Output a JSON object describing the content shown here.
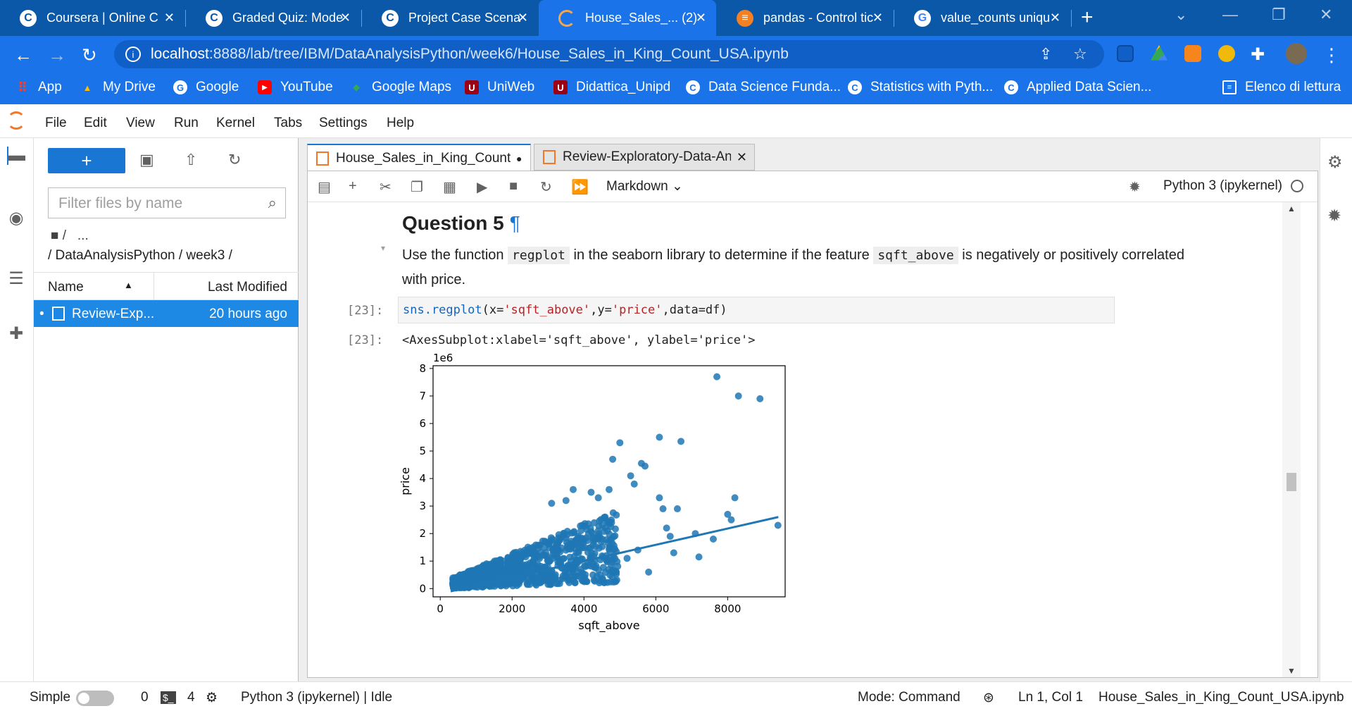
{
  "browser": {
    "tabs": [
      {
        "title": "Coursera | Online C",
        "icon": "coursera-icon"
      },
      {
        "title": "Graded Quiz: Mode",
        "icon": "coursera-icon"
      },
      {
        "title": "Project Case Scenar",
        "icon": "coursera-icon"
      },
      {
        "title": "House_Sales_... (2)",
        "icon": "jupyter-icon"
      },
      {
        "title": "pandas - Control tic",
        "icon": "stackoverflow-icon"
      },
      {
        "title": "value_counts uniqu",
        "icon": "google-icon"
      }
    ],
    "url_host": "localhost",
    "url_path": ":8888/lab/tree/IBM/DataAnalysisPython/week6/House_Sales_in_King_Count_USA.ipynb",
    "bookmarks": [
      {
        "label": "App",
        "icon": "apps-grid-icon"
      },
      {
        "label": "My Drive",
        "icon": "drive-icon"
      },
      {
        "label": "Google",
        "icon": "google-icon"
      },
      {
        "label": "YouTube",
        "icon": "youtube-icon"
      },
      {
        "label": "Google Maps",
        "icon": "maps-icon"
      },
      {
        "label": "UniWeb",
        "icon": "unipd-icon"
      },
      {
        "label": "Didattica_Unipd",
        "icon": "unipd-icon"
      },
      {
        "label": "Data Science Funda...",
        "icon": "coursera-icon"
      },
      {
        "label": "Statistics with Pyth...",
        "icon": "coursera-icon"
      },
      {
        "label": "Applied Data Scien...",
        "icon": "coursera-icon"
      }
    ],
    "reading_list": "Elenco di lettura"
  },
  "menu": [
    "File",
    "Edit",
    "View",
    "Run",
    "Kernel",
    "Tabs",
    "Settings",
    "Help"
  ],
  "filebrowser": {
    "filter_placeholder": "Filter files by name",
    "breadcrumb_root": "/",
    "breadcrumb_more": "...",
    "breadcrumb_path": "/ DataAnalysisPython / week3 /",
    "col_name": "Name",
    "col_modified": "Last Modified",
    "files": [
      {
        "name": "Review-Exp...",
        "modified": "20 hours ago"
      }
    ]
  },
  "doctabs": [
    {
      "title": "House_Sales_in_King_Count_",
      "active": true,
      "modified": true
    },
    {
      "title": "Review-Exploratory-Data-An",
      "active": false,
      "modified": false
    }
  ],
  "notebook_toolbar": {
    "cell_type": "Markdown",
    "kernel": "Python 3 (ipykernel)"
  },
  "notebook": {
    "heading": "Question 5",
    "heading_anchor": "¶",
    "md_before": "Use the function ",
    "md_code1": "regplot",
    "md_mid": " in the seaborn library to determine if the feature ",
    "md_code2": "sqft_above",
    "md_after": " is negatively or positively correlated with price.",
    "input_prompt": "[23]:",
    "code_fn": "sns.regplot",
    "code_open": "(x=",
    "code_x": "'sqft_above'",
    "code_y_key": ",y=",
    "code_y": "'price'",
    "code_data": ",data=df)",
    "output_prompt": "[23]:",
    "output_text": "<AxesSubplot:xlabel='sqft_above', ylabel='price'>"
  },
  "chart_data": {
    "type": "scatter",
    "title": "",
    "xlabel": "sqft_above",
    "ylabel": "price",
    "y_offset_label": "1e6",
    "xlim": [
      -200,
      9600
    ],
    "ylim": [
      -0.3,
      8.1
    ],
    "x_ticks": [
      0,
      2000,
      4000,
      6000,
      8000
    ],
    "y_ticks": [
      0,
      1,
      2,
      3,
      4,
      5,
      6,
      7,
      8
    ],
    "y_unit": "1e6 USD",
    "color": "#1f77b4",
    "regression_line": {
      "x": [
        290,
        9410
      ],
      "y": [
        -0.1,
        2.6
      ]
    },
    "points": [
      [
        7700,
        7.7
      ],
      [
        8300,
        7.0
      ],
      [
        8900,
        6.9
      ],
      [
        6100,
        5.5
      ],
      [
        5000,
        5.3
      ],
      [
        6700,
        5.35
      ],
      [
        4800,
        4.7
      ],
      [
        5600,
        4.55
      ],
      [
        5700,
        4.45
      ],
      [
        5300,
        4.1
      ],
      [
        5400,
        3.8
      ],
      [
        4700,
        3.6
      ],
      [
        3700,
        3.6
      ],
      [
        4200,
        3.5
      ],
      [
        6100,
        3.3
      ],
      [
        8200,
        3.3
      ],
      [
        6200,
        2.9
      ],
      [
        6600,
        2.9
      ],
      [
        3100,
        3.1
      ],
      [
        3500,
        3.2
      ],
      [
        4400,
        3.3
      ],
      [
        8000,
        2.7
      ],
      [
        8100,
        2.5
      ],
      [
        9400,
        2.3
      ],
      [
        6300,
        2.2
      ],
      [
        7100,
        2.0
      ],
      [
        6400,
        1.9
      ],
      [
        7600,
        1.8
      ],
      [
        7200,
        1.15
      ],
      [
        5200,
        1.1
      ],
      [
        5800,
        0.6
      ],
      [
        4900,
        0.6
      ],
      [
        5500,
        1.4
      ],
      [
        6500,
        1.3
      ]
    ],
    "cloud_summary": "dense cluster of points between 300 and 5000 sqft with prices mostly under 3.5e6"
  },
  "status": {
    "mode_simple": "Simple",
    "count0": "0",
    "count4": "4",
    "kernel_status": "Python 3 (ipykernel) | Idle",
    "mode": "Mode: Command",
    "cursor": "Ln 1, Col 1",
    "filename": "House_Sales_in_King_Count_USA.ipynb"
  }
}
